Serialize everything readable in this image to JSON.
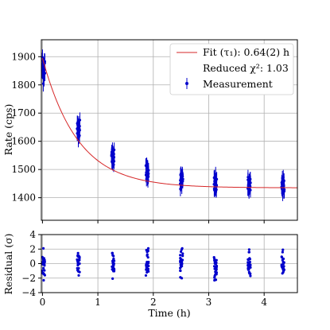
{
  "chart_data": [
    {
      "type": "scatter",
      "panel": "main",
      "xlabel": "",
      "ylabel": "Rate (cps)",
      "xlim": [
        -0.02,
        4.6
      ],
      "ylim": [
        1320,
        1960
      ],
      "yticks": [
        1400,
        1500,
        1600,
        1700,
        1800,
        1900
      ],
      "xticks": [
        0,
        1,
        2,
        3,
        4
      ],
      "grid": true,
      "legend": {
        "placement": "top-right",
        "entries": [
          {
            "label": "Fit (τ₁): 0.64(2) h",
            "kind": "line"
          },
          {
            "label": "Reduced χ²: 1.03",
            "kind": "text"
          },
          {
            "label": "Measurement",
            "kind": "errorbar"
          }
        ]
      },
      "fit": {
        "name": "Fit (τ₁): 0.64(2) h",
        "model": "A*exp(-t/tau)+C",
        "A": 460,
        "tau": 0.64,
        "C": 1435,
        "color": "#d62728"
      },
      "measurement": {
        "name": "Measurement",
        "color": "#0000cc",
        "clusters": [
          {
            "x_center": 0.02,
            "x_spread": 0.05,
            "y_mean": 1860,
            "y_spread": 45,
            "err": 28
          },
          {
            "x_center": 0.65,
            "x_spread": 0.05,
            "y_mean": 1645,
            "y_spread": 25,
            "err": 27
          },
          {
            "x_center": 1.27,
            "x_spread": 0.05,
            "y_mean": 1547,
            "y_spread": 25,
            "err": 26
          },
          {
            "x_center": 1.89,
            "x_spread": 0.05,
            "y_mean": 1492,
            "y_spread": 25,
            "err": 26
          },
          {
            "x_center": 2.51,
            "x_spread": 0.05,
            "y_mean": 1462,
            "y_spread": 25,
            "err": 26
          },
          {
            "x_center": 3.12,
            "x_spread": 0.05,
            "y_mean": 1446,
            "y_spread": 25,
            "err": 26
          },
          {
            "x_center": 3.73,
            "x_spread": 0.05,
            "y_mean": 1441,
            "y_spread": 25,
            "err": 26
          },
          {
            "x_center": 4.34,
            "x_spread": 0.05,
            "y_mean": 1440,
            "y_spread": 25,
            "err": 26
          }
        ]
      }
    },
    {
      "type": "scatter",
      "panel": "residual",
      "xlabel": "Time (h)",
      "ylabel": "Residual (σ)",
      "xlim": [
        -0.02,
        4.6
      ],
      "ylim": [
        -4,
        4
      ],
      "yticks": [
        -4,
        -2,
        0,
        2,
        4
      ],
      "xticks": [
        0,
        1,
        2,
        3,
        4
      ],
      "grid": true,
      "series": [
        {
          "color": "#0000cc",
          "points_per_cluster": 26,
          "cluster_x_centers": [
            0.02,
            0.65,
            1.27,
            1.89,
            2.51,
            3.12,
            3.73,
            4.34
          ],
          "cluster_x_spread": 0.05,
          "residual_range": [
            -2.3,
            2.1
          ]
        }
      ]
    }
  ]
}
